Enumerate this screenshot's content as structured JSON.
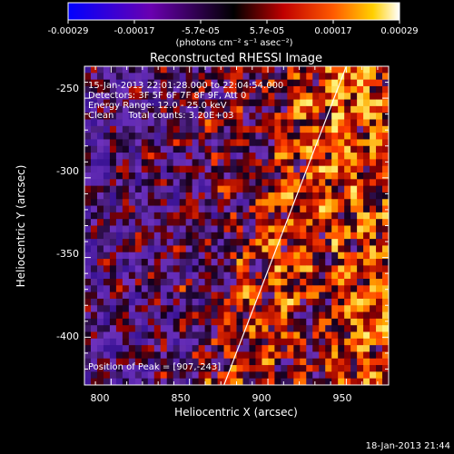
{
  "colorbar": {
    "tick_labels": [
      "-0.00029",
      "-0.00017",
      "-5.7e-05",
      "5.7e-05",
      "0.00017",
      "0.00029"
    ],
    "units_line": "(photons cm⁻² s⁻¹ asec⁻²)"
  },
  "plot": {
    "title": "Reconstructed RHESSI Image",
    "xlabel": "Heliocentric X (arcsec)",
    "ylabel": "Heliocentric Y (arcsec)",
    "x_ticks": [
      "800",
      "850",
      "900",
      "950"
    ],
    "y_ticks": [
      "-250",
      "-300",
      "-350",
      "-400"
    ],
    "xlim": [
      783,
      977
    ],
    "ylim": [
      -430,
      -230
    ],
    "info_lines": [
      "15-Jan-2013 22:01:28.000 to 22:04:54.000",
      "Detectors: 3F 5F 6F 7F 8F 9F, Att 0",
      "Energy Range: 12.0 - 25.0 keV",
      "Clean     Total counts: 3.20E+03"
    ],
    "peak_label": "Position of Peak = [907,-243]",
    "limb_line": {
      "x1": 872,
      "y1": -430,
      "x2": 950,
      "y2": -230
    }
  },
  "footer": {
    "date": "18-Jan-2013 21:44"
  },
  "colors": {
    "background": "#000000",
    "text": "#ffffff"
  }
}
